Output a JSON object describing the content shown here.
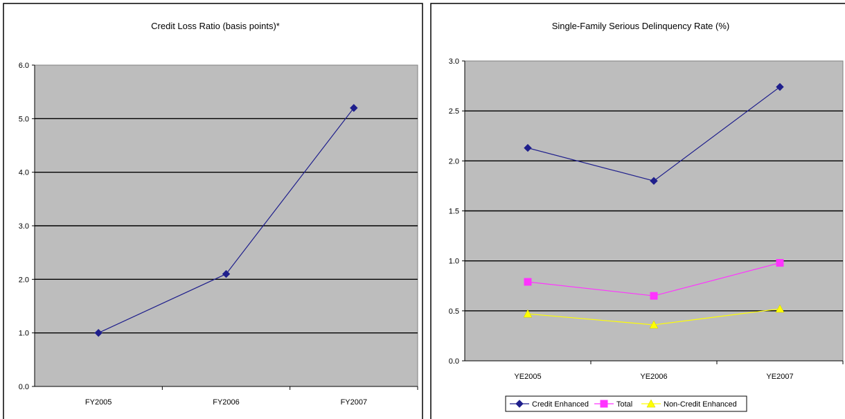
{
  "chart_data": [
    {
      "type": "line",
      "title": "Credit Loss Ratio (basis points)*",
      "xlabel": "",
      "ylabel": "",
      "categories": [
        "FY2005",
        "FY2006",
        "FY2007"
      ],
      "series": [
        {
          "values": [
            1.0,
            2.1,
            5.2
          ],
          "color": "#1f1f8c",
          "marker": "diamond"
        }
      ],
      "ylim": [
        0,
        6
      ],
      "yticks": [
        "0.0",
        "1.0",
        "2.0",
        "3.0",
        "4.0",
        "5.0",
        "6.0"
      ],
      "grid": true,
      "background": "#bdbdbd"
    },
    {
      "type": "line",
      "title": "Single-Family Serious Delinquency Rate (%)",
      "xlabel": "",
      "ylabel": "",
      "categories": [
        "YE2005",
        "YE2006",
        "YE2007"
      ],
      "series": [
        {
          "name": "Credit Enhanced",
          "values": [
            2.13,
            1.8,
            2.74
          ],
          "color": "#1f1f8c",
          "marker": "diamond"
        },
        {
          "name": "Total",
          "values": [
            0.79,
            0.65,
            0.98
          ],
          "color": "#ff33ff",
          "marker": "square"
        },
        {
          "name": "Non-Credit Enhanced",
          "values": [
            0.47,
            0.36,
            0.52
          ],
          "color": "#ffff00",
          "marker": "triangle"
        }
      ],
      "ylim": [
        0,
        3
      ],
      "yticks": [
        "0.0",
        "0.5",
        "1.0",
        "1.5",
        "2.0",
        "2.5",
        "3.0"
      ],
      "grid": true,
      "legend": "bottom",
      "background": "#bdbdbd"
    }
  ]
}
